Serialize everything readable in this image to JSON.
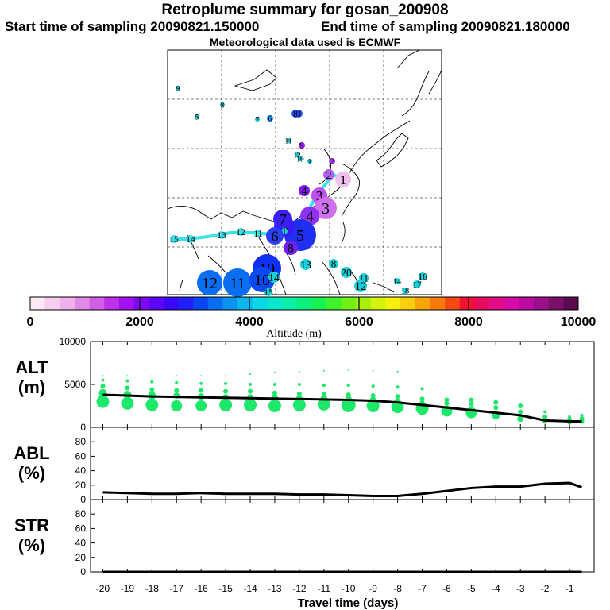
{
  "header": {
    "title": "Retroplume summary for gosan_200908",
    "start_label": "Start time of sampling 20090821.150000",
    "end_label": "End time of sampling 20090821.180000",
    "met_label": "Meteorological data used is ECMWF"
  },
  "colorbar": {
    "label": "Altitude (m)",
    "min": 0,
    "max": 10000,
    "tick_labels": [
      "0",
      "2000",
      "4000",
      "6000",
      "8000",
      "10000"
    ],
    "colors": [
      "#fde8f6",
      "#f7cdf0",
      "#efb0ec",
      "#e28ae8",
      "#d25ee6",
      "#bf30ea",
      "#a012f2",
      "#7f08f5",
      "#5c05f7",
      "#3a08f8",
      "#1f20f7",
      "#0b45f3",
      "#0a6ef2",
      "#0a94f2",
      "#0ab8ee",
      "#0ad8e6",
      "#0ae8cc",
      "#0aefa8",
      "#0af27e",
      "#16f24f",
      "#3ef22c",
      "#72f016",
      "#a6f00a",
      "#d4f20a",
      "#f6f00a",
      "#f8cf0a",
      "#f8a50a",
      "#f87a0a",
      "#f54812",
      "#f01230",
      "#e80a5c",
      "#e40a86",
      "#d60aa8",
      "#bb0aa5",
      "#9a1088",
      "#7a1068",
      "#5c0c4c"
    ]
  },
  "map": {
    "markers": [
      {
        "label": "9",
        "color": "#18c0c8",
        "size": 3
      },
      {
        "label": "8",
        "color": "#18c0c8",
        "size": 3
      },
      {
        "label": "5",
        "color": "#18c0c8",
        "size": 3
      },
      {
        "label": "7",
        "color": "#18c0c8",
        "size": 3
      },
      {
        "label": "6",
        "color": "#1a90f0",
        "size": 4
      },
      {
        "label": "9",
        "color": "#2a50f2",
        "size": 5
      },
      {
        "label": "8",
        "color": "#2a50f2",
        "size": 5
      },
      {
        "label": "11",
        "color": "#18c0c8",
        "size": 3
      },
      {
        "label": "9",
        "color": "#9a20f0",
        "size": 4
      },
      {
        "label": "12",
        "color": "#18c0c8",
        "size": 3
      },
      {
        "label": "10",
        "color": "#18c0c8",
        "size": 3
      },
      {
        "label": "1",
        "color": "#18c0c8",
        "size": 3
      },
      {
        "label": "2",
        "color": "#b040f0",
        "size": 4
      },
      {
        "label": "2",
        "color": "#b060f0",
        "size": 7
      },
      {
        "label": "1",
        "color": "#f2c0f0",
        "size": 10
      },
      {
        "label": "4",
        "color": "#8018f0",
        "size": 7
      },
      {
        "label": "3",
        "color": "#c050ee",
        "size": 10
      },
      {
        "label": "3",
        "color": "#d070ee",
        "size": 14
      },
      {
        "label": "4",
        "color": "#9030f0",
        "size": 12
      },
      {
        "label": "5",
        "color": "#2030f2",
        "size": 20
      },
      {
        "label": "6",
        "color": "#3a18f4",
        "size": 13
      },
      {
        "label": "7",
        "color": "#3a20f4",
        "size": 12
      },
      {
        "label": "8",
        "color": "#7020f0",
        "size": 9
      },
      {
        "label": "1",
        "color": "#18d0d8",
        "size": 4
      },
      {
        "label": "6",
        "color": "#2a40f2",
        "size": 11
      },
      {
        "label": "10",
        "color": "#0f30f2",
        "size": 18
      },
      {
        "label": "12",
        "color": "#0a6ef2",
        "size": 16
      },
      {
        "label": "11",
        "color": "#0a6ef2",
        "size": 18
      },
      {
        "label": "10",
        "color": "#0a4af2",
        "size": 16
      },
      {
        "label": "14",
        "color": "#18d0d8",
        "size": 7
      },
      {
        "label": "15",
        "color": "#18d0d8",
        "size": 5
      },
      {
        "label": "13",
        "color": "#18d0d8",
        "size": 7
      },
      {
        "label": "8",
        "color": "#18d0d8",
        "size": 6
      },
      {
        "label": "20",
        "color": "#18d0d8",
        "size": 7
      },
      {
        "label": "11",
        "color": "#18d0d8",
        "size": 6
      },
      {
        "label": "12",
        "color": "#18d0d8",
        "size": 8
      },
      {
        "label": "14",
        "color": "#18d0d8",
        "size": 4
      },
      {
        "label": "18",
        "color": "#18d0d8",
        "size": 4
      },
      {
        "label": "17",
        "color": "#18d0d8",
        "size": 5
      },
      {
        "label": "16",
        "color": "#18d0d8",
        "size": 5
      },
      {
        "label": "15",
        "color": "#3ce0e8",
        "size": 5
      },
      {
        "label": "14",
        "color": "#3ce0e8",
        "size": 5
      },
      {
        "label": "13",
        "color": "#3ce0e8",
        "size": 5
      },
      {
        "label": "12",
        "color": "#3ce0e8",
        "size": 5
      },
      {
        "label": "11",
        "color": "#3ce0e8",
        "size": 5
      }
    ]
  },
  "chart_data": [
    {
      "type": "line",
      "name": "ALT",
      "ylabel": "ALT (m)",
      "ylim": [
        0,
        10000
      ],
      "yticks": [
        "0",
        "5000",
        "10000"
      ],
      "x": [
        -20,
        -19,
        -18,
        -17,
        -16,
        -15,
        -14,
        -13,
        -12,
        -11,
        -10,
        -9,
        -8,
        -7,
        -6,
        -5,
        -4,
        -3,
        -2,
        -1,
        -0.5
      ],
      "series": [
        {
          "name": "mean altitude",
          "values": [
            3800,
            3700,
            3600,
            3550,
            3500,
            3450,
            3400,
            3350,
            3300,
            3250,
            3200,
            3100,
            2900,
            2600,
            2300,
            2000,
            1700,
            1400,
            800,
            700,
            700
          ]
        }
      ],
      "plume_rows": [
        {
          "values": [
            3000,
            2800,
            2600,
            2500,
            2500,
            2600,
            2600,
            2500,
            2600,
            2700,
            2600,
            2500,
            2400,
            2200,
            1900,
            1700,
            1400,
            1000,
            700,
            600,
            700
          ],
          "sizes": [
            8,
            8,
            8,
            7,
            7,
            8,
            8,
            8,
            8,
            8,
            9,
            8,
            8,
            8,
            7,
            7,
            5,
            4,
            3,
            3,
            3
          ]
        },
        {
          "values": [
            4000,
            3800,
            3700,
            3700,
            3600,
            3500,
            3500,
            3500,
            3400,
            3400,
            3300,
            3200,
            3000,
            2900,
            2800,
            2700,
            2300,
            1800,
            1200,
            900,
            1000
          ],
          "sizes": [
            5,
            5,
            5,
            4,
            4,
            4,
            4,
            4,
            4,
            4,
            4,
            4,
            4,
            3,
            3,
            3,
            3,
            3,
            3,
            3,
            3
          ]
        },
        {
          "values": [
            4800,
            4600,
            4400,
            4300,
            4300,
            4200,
            4200,
            4000,
            3900,
            3900,
            3800,
            3700,
            3600,
            3300,
            3200,
            3200,
            2900,
            2500,
            1800,
            1200,
            1400
          ],
          "sizes": [
            3,
            3,
            3,
            3,
            3,
            3,
            3,
            3,
            3,
            3,
            3,
            3,
            3,
            3,
            3,
            3,
            3,
            3,
            2,
            2,
            2
          ]
        },
        {
          "values": [
            5500,
            5400,
            5300,
            5200,
            5100,
            5100,
            5000,
            5000,
            5000,
            4900,
            4900,
            4800,
            4700,
            4500,
            0,
            0,
            0,
            0,
            0,
            0,
            0
          ],
          "sizes": [
            2,
            2,
            2,
            2,
            2,
            2,
            2,
            2,
            2,
            2,
            2,
            2,
            2,
            2,
            0,
            0,
            0,
            0,
            0,
            0,
            0
          ]
        },
        {
          "values": [
            6000,
            6000,
            6000,
            6000,
            6000,
            6000,
            6200,
            6400,
            6500,
            6600,
            6700,
            6600,
            6500,
            0,
            0,
            0,
            0,
            0,
            0,
            0,
            0
          ],
          "sizes": [
            1,
            1,
            1,
            1,
            1,
            1,
            1,
            1,
            1,
            1,
            1,
            1,
            1,
            0,
            0,
            0,
            0,
            0,
            0,
            0,
            0
          ]
        }
      ]
    },
    {
      "type": "line",
      "name": "ABL",
      "ylabel": "ABL (%)",
      "ylim": [
        0,
        100
      ],
      "yticks": [
        "0",
        "20",
        "40",
        "60",
        "80"
      ],
      "x": [
        -20,
        -19,
        -18,
        -17,
        -16,
        -15,
        -14,
        -13,
        -12,
        -11,
        -10,
        -9,
        -8,
        -7,
        -6,
        -5,
        -4,
        -3,
        -2,
        -1,
        -0.5
      ],
      "series": [
        {
          "name": "fraction in ABL",
          "values": [
            10,
            9,
            8,
            8,
            9,
            8,
            8,
            8,
            7,
            7,
            6,
            5,
            5,
            8,
            12,
            16,
            18,
            18,
            22,
            23,
            17
          ]
        }
      ]
    },
    {
      "type": "line",
      "name": "STR",
      "ylabel": "STR (%)",
      "ylim": [
        0,
        100
      ],
      "yticks": [
        "0",
        "20",
        "40",
        "60",
        "80"
      ],
      "x": [
        -20,
        -19,
        -18,
        -17,
        -16,
        -15,
        -14,
        -13,
        -12,
        -11,
        -10,
        -9,
        -8,
        -7,
        -6,
        -5,
        -4,
        -3,
        -2,
        -1,
        -0.5
      ],
      "series": [
        {
          "name": "fraction in stratosphere",
          "values": [
            0,
            0,
            0,
            0,
            0,
            0,
            0,
            0,
            0,
            0,
            0,
            0,
            0,
            0,
            0,
            0,
            0,
            0,
            0,
            0,
            0
          ]
        }
      ]
    }
  ],
  "xaxis": {
    "label": "Travel time (days)",
    "tick_labels": [
      "-20",
      "-19",
      "-18",
      "-17",
      "-16",
      "-15",
      "-14",
      "-13",
      "-12",
      "-11",
      "-10",
      "-9",
      "-8",
      "-7",
      "-6",
      "-5",
      "-4",
      "-3",
      "-2",
      "-1"
    ]
  },
  "panel_labels": {
    "alt": [
      "ALT",
      "(m)"
    ],
    "abl": [
      "ABL",
      "(%)"
    ],
    "str": [
      "STR",
      "(%)"
    ]
  }
}
